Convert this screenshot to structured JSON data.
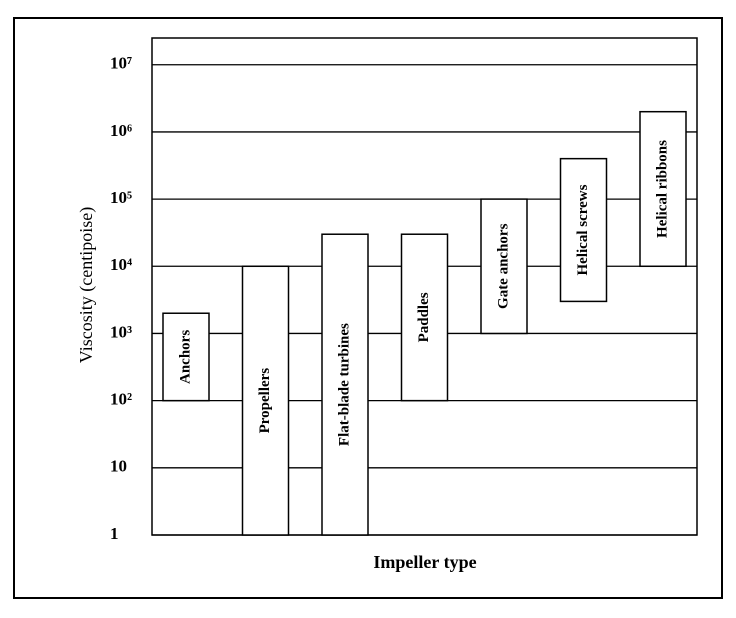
{
  "chart_data": {
    "type": "floating-bar",
    "xlabel": "Impeller type",
    "ylabel": "Viscosity (centipoise)",
    "categories": [
      "Anchors",
      "Propellers",
      "Flat-blade turbines",
      "Paddles",
      "Gate anchors",
      "Helical screws",
      "Helical ribbons"
    ],
    "low": [
      100,
      1,
      1,
      100,
      1000,
      3000,
      10000
    ],
    "high": [
      2000,
      10000,
      30000,
      30000,
      100000,
      400000,
      2000000
    ],
    "color": "#ffffff",
    "log": true,
    "grid": true,
    "ylim": [
      1,
      25000000
    ],
    "yticks": [
      1,
      10,
      {
        "value": 100,
        "label": "10²"
      },
      {
        "value": 1000,
        "label": "10³"
      },
      {
        "value": 10000,
        "label": "10⁴"
      },
      {
        "value": 100000,
        "label": "10⁵"
      },
      {
        "value": 1000000,
        "label": "10⁶"
      },
      {
        "value": 10000000,
        "label": "10⁷"
      }
    ]
  }
}
